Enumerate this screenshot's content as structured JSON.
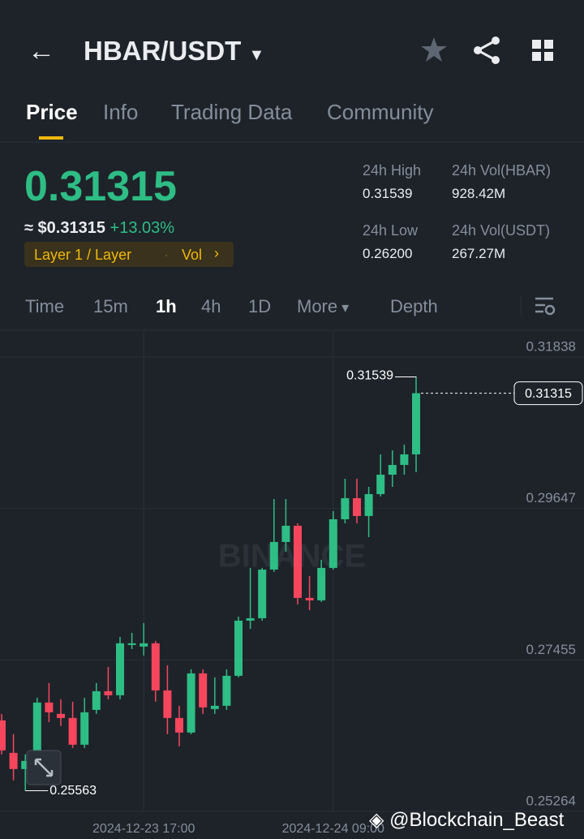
{
  "header": {
    "pair": "HBAR/USDT"
  },
  "tabs": [
    "Price",
    "Info",
    "Trading Data",
    "Community"
  ],
  "price": {
    "last": "0.31315",
    "usd": "≈ $0.31315",
    "change": "+13.03%",
    "tag": "Layer 1 / Layer",
    "tag_vol": "Vol"
  },
  "stats": [
    {
      "label": "24h High",
      "value": "0.31539"
    },
    {
      "label": "24h Vol(HBAR)",
      "value": "928.42M"
    },
    {
      "label": "24h Low",
      "value": "0.26200"
    },
    {
      "label": "24h Vol(USDT)",
      "value": "267.27M"
    }
  ],
  "intervals": [
    "Time",
    "15m",
    "1h",
    "4h",
    "1D",
    "More",
    "Depth"
  ],
  "chart_data": {
    "type": "candlestick",
    "up_color": "#2ebd85",
    "down_color": "#f6465d",
    "categories": [
      null,
      null,
      null,
      null,
      null,
      null,
      null,
      null,
      null,
      null,
      null,
      null,
      "2024-12-23 17:00",
      null,
      null,
      null,
      null,
      null,
      null,
      null,
      null,
      null,
      null,
      null,
      null,
      null,
      null,
      null,
      "2024-12-24 09:00",
      null,
      null,
      null,
      null,
      null,
      null,
      null
    ],
    "open": [
      0.26581,
      0.26111,
      0.25877,
      0.26147,
      0.26839,
      0.26675,
      0.26616,
      0.26229,
      0.26733,
      0.27003,
      0.26945,
      0.27672,
      0.27649,
      0.27696,
      0.27015,
      0.26616,
      0.26405,
      0.27261,
      0.26745,
      0.26792,
      0.27226,
      0.28024,
      0.28059,
      0.28763,
      0.29162,
      0.29397,
      0.28353,
      0.28318,
      0.28787,
      0.29491,
      0.29796,
      0.29538,
      0.29855,
      0.30136,
      0.30277,
      0.3043
    ],
    "high": [
      0.26675,
      0.26381,
      0.26088,
      0.26909,
      0.27121,
      0.26886,
      0.26851,
      0.26909,
      0.27121,
      0.27355,
      0.27789,
      0.27848,
      0.27989,
      0.27731,
      0.27379,
      0.26792,
      0.2732,
      0.2732,
      0.27203,
      0.2732,
      0.28083,
      0.28787,
      0.28787,
      0.29784,
      0.29784,
      0.29432,
      0.2867,
      0.28904,
      0.29608,
      0.30078,
      0.30078,
      0.2996,
      0.3043,
      0.30488,
      0.30571,
      0.31539
    ],
    "low": [
      0.26088,
      0.25712,
      0.25563,
      0.26088,
      0.26557,
      0.26499,
      0.26182,
      0.26182,
      0.26675,
      0.26886,
      0.26886,
      0.27613,
      0.2752,
      0.26851,
      0.26381,
      0.26205,
      0.26381,
      0.26675,
      0.26675,
      0.26733,
      0.27203,
      0.27907,
      0.28024,
      0.28728,
      0.29022,
      0.28259,
      0.28177,
      0.28294,
      0.28763,
      0.29432,
      0.29432,
      0.29233,
      0.2982,
      0.2996,
      0.30136,
      0.30172
    ],
    "close": [
      0.26147,
      0.25877,
      0.25994,
      0.26839,
      0.26698,
      0.26616,
      0.26229,
      0.26698,
      0.27003,
      0.26945,
      0.27696,
      0.27696,
      0.27696,
      0.27015,
      0.26616,
      0.26405,
      0.27261,
      0.26769,
      0.26792,
      0.27226,
      0.28024,
      0.28059,
      0.28763,
      0.29162,
      0.29397,
      0.28353,
      0.28318,
      0.28787,
      0.29491,
      0.29796,
      0.29538,
      0.29855,
      0.30136,
      0.30277,
      0.3043,
      0.31315
    ],
    "ylim": [
      0.25264,
      0.32214
    ],
    "yticks": [
      0.31838,
      0.29647,
      0.27455,
      0.25264
    ],
    "grid": true
  },
  "watermark": "BINANCE",
  "credit": "@Blockchain_Beast"
}
